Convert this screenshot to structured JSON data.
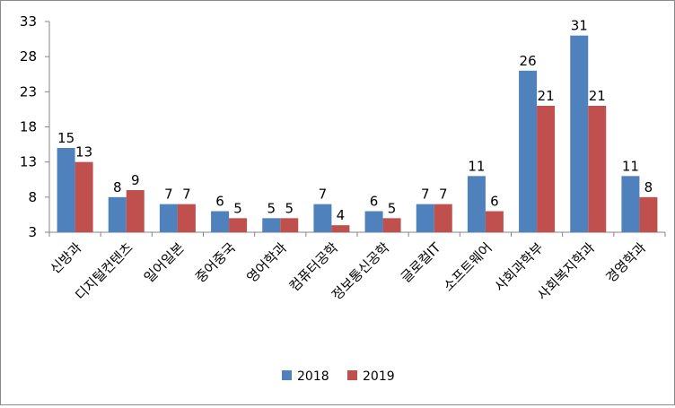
{
  "chart_data": {
    "type": "bar",
    "title": "",
    "xlabel": "",
    "ylabel": "",
    "ylim": [
      3,
      33
    ],
    "yticks": [
      3,
      8,
      13,
      18,
      23,
      28,
      33
    ],
    "grid": false,
    "legend": "bottom",
    "categories": [
      "신방과",
      "디지털컨텐츠",
      "일어일본",
      "중어중국",
      "영어학과",
      "컴퓨터공학",
      "정보통신공학",
      "글로컬IT",
      "소프트웨어",
      "사회과학부",
      "사회복지학과",
      "경영학과"
    ],
    "series": [
      {
        "name": "2018",
        "color": "#4f81bd",
        "values": [
          15,
          8,
          7,
          6,
          5,
          7,
          6,
          7,
          11,
          26,
          31,
          11
        ]
      },
      {
        "name": "2019",
        "color": "#c0504d",
        "values": [
          13,
          9,
          7,
          5,
          5,
          4,
          5,
          7,
          6,
          21,
          21,
          8
        ]
      }
    ]
  }
}
